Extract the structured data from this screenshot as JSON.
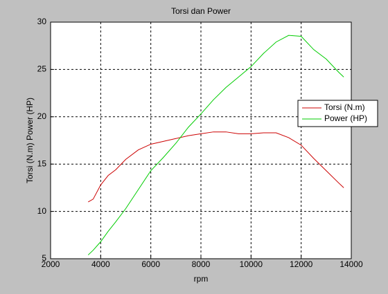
{
  "chart_data": {
    "type": "line",
    "title": "Torsi dan Power",
    "x_label": "rpm",
    "y_label": "Torsi (N.m)   Power (HP)",
    "x": [
      3500,
      3700,
      4000,
      4300,
      4600,
      5000,
      5500,
      6000,
      6500,
      7000,
      7500,
      8000,
      8500,
      9000,
      9500,
      10000,
      10500,
      11000,
      11500,
      12000,
      12500,
      13000,
      13500,
      13700
    ],
    "series": [
      {
        "name": "Torsi (N.m)",
        "color": "#cc0000",
        "values": [
          11,
          11.3,
          12.8,
          13.8,
          14.4,
          15.5,
          16.5,
          17.1,
          17.4,
          17.7,
          18.0,
          18.2,
          18.4,
          18.4,
          18.2,
          18.2,
          18.3,
          18.3,
          17.8,
          17.0,
          15.6,
          14.3,
          13.0,
          12.5
        ]
      },
      {
        "name": "Power (HP)",
        "color": "#00cc00",
        "values": [
          5.4,
          5.9,
          6.8,
          7.9,
          8.9,
          10.3,
          12.3,
          14.3,
          15.7,
          17.2,
          18.9,
          20.3,
          21.8,
          23.1,
          24.2,
          25.3,
          26.7,
          27.9,
          28.6,
          28.5,
          27.1,
          26.1,
          24.7,
          24.2
        ]
      }
    ],
    "xlim": [
      2000,
      14000
    ],
    "xticks": [
      2000,
      4000,
      6000,
      8000,
      10000,
      12000,
      14000
    ],
    "ylim": [
      5,
      30
    ],
    "yticks": [
      5,
      10,
      15,
      20,
      25,
      30
    ],
    "grid": true,
    "legend": "right"
  }
}
